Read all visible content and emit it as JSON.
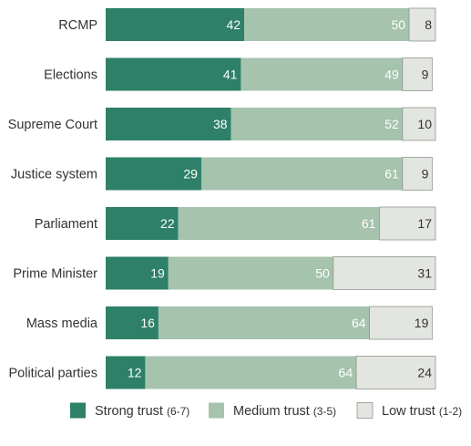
{
  "chart_data": {
    "type": "bar",
    "stacked": true,
    "orientation": "horizontal",
    "unit": "percent",
    "categories": [
      "RCMP",
      "Elections",
      "Supreme Court",
      "Justice system",
      "Parliament",
      "Prime Minister",
      "Mass media",
      "Political parties"
    ],
    "series": [
      {
        "name": "Strong trust",
        "range": "(6-7)",
        "color": "#2e8068",
        "label_color": "#ffffff",
        "values": [
          42,
          41,
          38,
          29,
          22,
          19,
          16,
          12
        ]
      },
      {
        "name": "Medium trust",
        "range": "(3-5)",
        "color": "#a5c3ad",
        "label_color": "#ffffff",
        "values": [
          50,
          49,
          52,
          61,
          61,
          50,
          64,
          64
        ]
      },
      {
        "name": "Low trust",
        "range": "(1-2)",
        "color": "#e3e5e0",
        "label_color": "#333333",
        "values": [
          8,
          9,
          10,
          9,
          17,
          31,
          19,
          24
        ]
      }
    ],
    "xlim": [
      0,
      100
    ],
    "grid": false,
    "legend_position": "bottom"
  }
}
